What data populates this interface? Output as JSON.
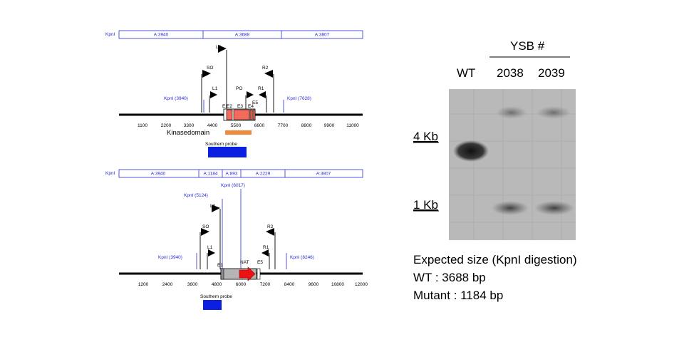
{
  "top_map": {
    "enzyme": "KpnI",
    "fragments": [
      "A:3940",
      "A:3688",
      "A:3807"
    ],
    "flags": [
      "L2",
      "SO",
      "R2",
      "L1",
      "PO",
      "R1"
    ],
    "kpni_left": "KpnI (3940)",
    "kpni_right": "KpnI (7628)",
    "exons": [
      "E1",
      "E2",
      "E3",
      "E4",
      "E5"
    ],
    "ticks": [
      "1100",
      "2200",
      "3300",
      "4400",
      "5500",
      "6600",
      "7700",
      "8800",
      "9900",
      "11000"
    ],
    "kinase_label": "Kinasedomain",
    "probe_label": "Southern probe",
    "colors": {
      "exon": "#f26b5b",
      "kinase": "#f08a3a",
      "probe": "#0a1fe0"
    }
  },
  "bottom_map": {
    "enzyme": "KpnI",
    "fragments": [
      "A:3940",
      "A:1184",
      "A:893",
      "A:2229",
      "A:3807"
    ],
    "kpni_6017": "KpnI (6017)",
    "kpni_5124": "KpnI (5124)",
    "kpni_left": "KpnI (3940)",
    "kpni_right": "KpnI (8246)",
    "flags": [
      "L2",
      "SO",
      "R2",
      "L1",
      "R1"
    ],
    "exons": [
      "E1",
      "E5"
    ],
    "nat_label": "NAT",
    "ticks": [
      "1200",
      "2400",
      "3600",
      "4800",
      "6000",
      "7200",
      "8400",
      "9600",
      "10800",
      "12000"
    ],
    "probe_label": "Southern probe",
    "colors": {
      "cassette": "#b5b5b5",
      "nat": "#ee1111",
      "probe": "#0a1fe0"
    }
  },
  "blot": {
    "header": "YSB #",
    "lanes": [
      "WT",
      "2038",
      "2039"
    ],
    "markers": [
      "4 Kb",
      "1 Kb"
    ]
  },
  "caption": {
    "title": "Expected size (KpnI digestion)",
    "wt": "WT : 3688 bp",
    "mutant": "Mutant : 1184 bp"
  }
}
